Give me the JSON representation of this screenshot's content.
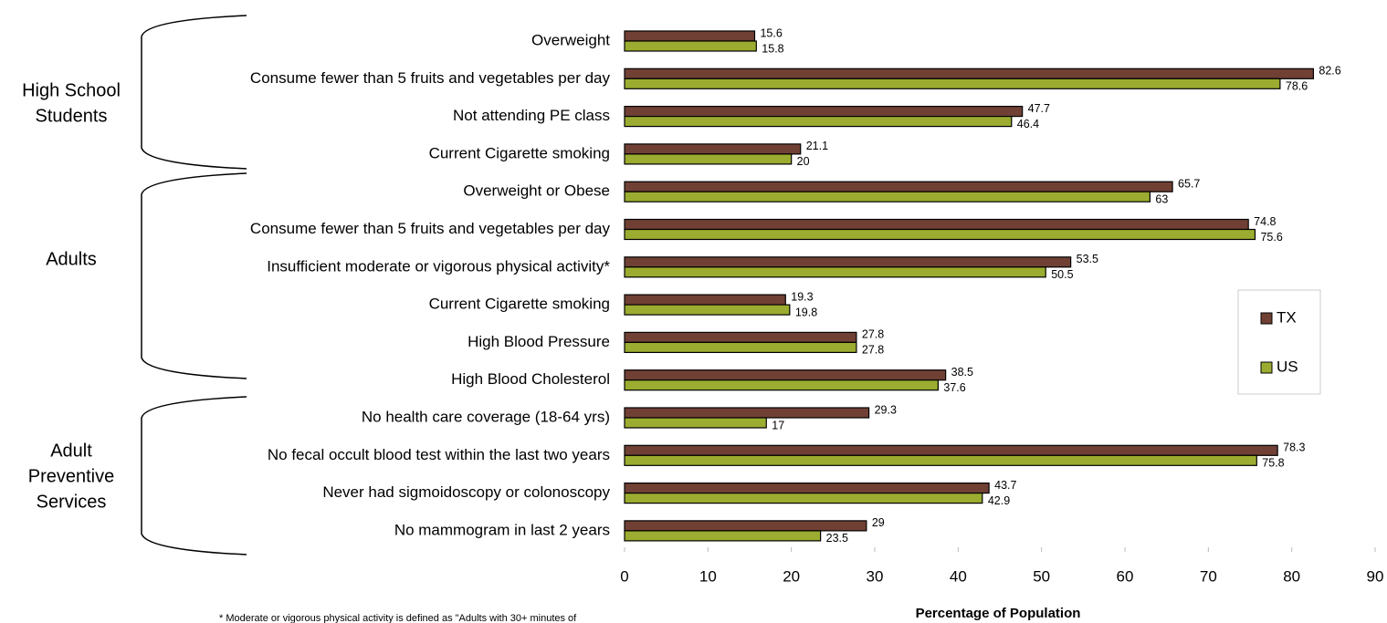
{
  "chart_data": {
    "type": "bar",
    "orientation": "horizontal",
    "groups": [
      [
        "High School",
        "Students"
      ],
      [
        "Adults"
      ],
      [
        "Adult",
        "Preventive",
        "Services"
      ]
    ],
    "categories": [
      "Overweight",
      "Consume fewer than 5 fruits and vegetables per day",
      "Not attending PE class",
      "Current Cigarette smoking",
      "Overweight or Obese",
      "Consume fewer than 5 fruits and vegetables per day",
      "Insufficient moderate or vigorous physical activity*",
      "Current Cigarette smoking",
      "High Blood Pressure",
      "High Blood Cholesterol",
      "No health care coverage (18-64 yrs)",
      "No fecal occult blood test within the last two years",
      "Never had sigmoidoscopy or colonoscopy",
      "No mammogram in last 2 years"
    ],
    "series": [
      {
        "name": "TX",
        "color": "#704035",
        "values": [
          15.6,
          82.6,
          47.7,
          21.1,
          65.7,
          74.8,
          53.5,
          19.3,
          27.8,
          38.5,
          29.3,
          78.3,
          43.7,
          29
        ]
      },
      {
        "name": "US",
        "color": "#9bac30",
        "values": [
          15.8,
          78.6,
          46.4,
          20,
          63,
          75.6,
          50.5,
          19.8,
          27.8,
          37.6,
          17,
          75.8,
          42.9,
          23.5
        ]
      }
    ],
    "xlim": [
      0,
      90
    ],
    "xticks": [
      0,
      10,
      20,
      30,
      40,
      50,
      60,
      70,
      80,
      90
    ],
    "xlabel": "Percentage of Population",
    "footnote": "* Moderate or vigorous physical activity is defined as \"Adults with 30+ minutes of",
    "legend": "right"
  }
}
